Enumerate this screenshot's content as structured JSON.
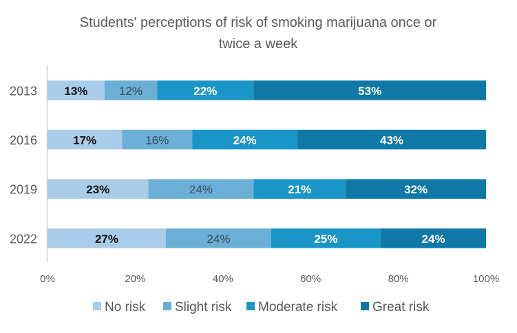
{
  "chart_data": {
    "type": "bar",
    "orientation": "horizontal",
    "stacked": "percent",
    "title": "Students' perceptions of risk of smoking marijuana once or twice a week",
    "title_lines": [
      "Students' perceptions of risk of smoking marijuana once or",
      "twice a week"
    ],
    "categories": [
      "2013",
      "2016",
      "2019",
      "2022"
    ],
    "series": [
      {
        "name": "No risk",
        "color": "#a9cce8",
        "label_color": "#111111",
        "label_bold": true,
        "values": [
          13,
          17,
          23,
          27
        ]
      },
      {
        "name": "Slight risk",
        "color": "#6baed6",
        "label_color": "#3a4a5a",
        "label_bold": false,
        "values": [
          12,
          16,
          24,
          24
        ]
      },
      {
        "name": "Moderate risk",
        "color": "#1a95c8",
        "label_color": "#ffffff",
        "label_bold": true,
        "values": [
          22,
          24,
          21,
          25
        ]
      },
      {
        "name": "Great risk",
        "color": "#0f78a6",
        "label_color": "#ffffff",
        "label_bold": true,
        "values": [
          53,
          43,
          32,
          24
        ]
      }
    ],
    "xlim": [
      0,
      100
    ],
    "xticks": [
      "0%",
      "20%",
      "40%",
      "60%",
      "80%",
      "100%"
    ],
    "grid": false,
    "legend": "bottom"
  }
}
